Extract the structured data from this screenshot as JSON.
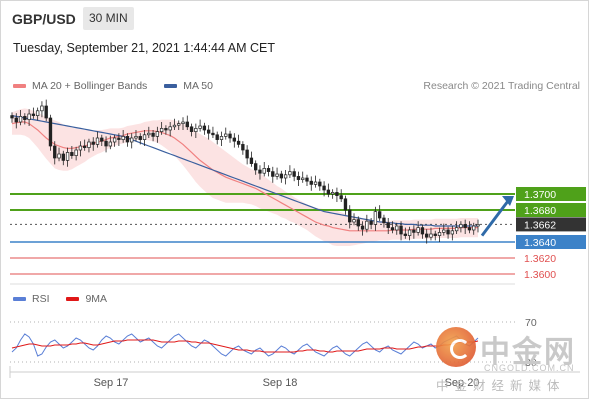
{
  "header": {
    "pair": "GBP/USD",
    "timeframe": "30 MIN",
    "timestamp": "Tuesday, September 21, 2021 1:44:44 AM CET"
  },
  "legend": {
    "items": [
      {
        "label": "MA 20 + Bollinger Bands",
        "color": "#f08080"
      },
      {
        "label": "MA 50",
        "color": "#3a5f9e"
      }
    ],
    "credit": "Research © 2021 Trading Central"
  },
  "rsi_legend": {
    "items": [
      {
        "label": "RSI",
        "color": "#5a7fd6"
      },
      {
        "label": "9MA",
        "color": "#e01818"
      }
    ]
  },
  "watermark": {
    "name": "中金网",
    "url": "CNGOLD.COM.CN",
    "slogan": "中金财经新媒体"
  },
  "chart_data": {
    "type": "candlestick",
    "x_labels": [
      "Sep 17",
      "Sep 18",
      "Sep 20"
    ],
    "ylim": [
      1.359,
      1.382
    ],
    "price_levels": [
      {
        "value": 1.37,
        "label": "1.3700",
        "style": "resistance",
        "color": "#4fa11a"
      },
      {
        "value": 1.368,
        "label": "1.3680",
        "style": "resistance",
        "color": "#4fa11a"
      },
      {
        "value": 1.3662,
        "label": "1.3662",
        "style": "last",
        "color": "#333333"
      },
      {
        "value": 1.364,
        "label": "1.3640",
        "style": "pivot",
        "color": "#3c82c8"
      },
      {
        "value": 1.362,
        "label": "1.3620",
        "style": "support",
        "color": "#e05050"
      },
      {
        "value": 1.36,
        "label": "1.3600",
        "style": "support",
        "color": "#e05050"
      }
    ],
    "closes": [
      1.3795,
      1.379,
      1.3797,
      1.3793,
      1.38,
      1.3798,
      1.3804,
      1.381,
      1.3795,
      1.376,
      1.3745,
      1.375,
      1.3742,
      1.3752,
      1.3748,
      1.3755,
      1.376,
      1.3758,
      1.3765,
      1.3762,
      1.377,
      1.3766,
      1.376,
      1.3765,
      1.377,
      1.3768,
      1.3772,
      1.3765,
      1.377,
      1.3772,
      1.3768,
      1.3774,
      1.3776,
      1.3772,
      1.3778,
      1.3782,
      1.378,
      1.3784,
      1.3786,
      1.3788,
      1.379,
      1.3784,
      1.3778,
      1.3782,
      1.3785,
      1.378,
      1.3776,
      1.3774,
      1.3768,
      1.3772,
      1.3775,
      1.377,
      1.3766,
      1.3762,
      1.3755,
      1.3745,
      1.3738,
      1.373,
      1.3726,
      1.3732,
      1.3728,
      1.3722,
      1.3725,
      1.372,
      1.3724,
      1.3728,
      1.3722,
      1.3718,
      1.372,
      1.3716,
      1.3712,
      1.3715,
      1.371,
      1.3705,
      1.37,
      1.3702,
      1.3698,
      1.3694,
      1.368,
      1.3665,
      1.3668,
      1.366,
      1.3656,
      1.3666,
      1.3662,
      1.3678,
      1.367,
      1.3664,
      1.3658,
      1.3655,
      1.366,
      1.365,
      1.3648,
      1.3655,
      1.3652,
      1.3658,
      1.365,
      1.3646,
      1.365,
      1.3648,
      1.3652,
      1.3655,
      1.365,
      1.3654,
      1.3658,
      1.3662,
      1.3658,
      1.3655,
      1.366,
      1.3662
    ],
    "ma20": [
      1.3788,
      1.3789,
      1.379,
      1.379,
      1.3788,
      1.3784,
      1.378,
      1.3775,
      1.377,
      1.3766,
      1.3762,
      1.376,
      1.3758,
      1.3757,
      1.3757,
      1.3758,
      1.3759,
      1.376,
      1.3762,
      1.3763,
      1.3765,
      1.3766,
      1.3768,
      1.377,
      1.3771,
      1.3772,
      1.3773,
      1.3775,
      1.3776,
      1.3777,
      1.3778,
      1.3779,
      1.3779,
      1.3779,
      1.3778,
      1.3777,
      1.3775,
      1.3773,
      1.377,
      1.3766,
      1.3762,
      1.3757,
      1.3752,
      1.3747,
      1.3742,
      1.3738,
      1.3734,
      1.373,
      1.3727,
      1.3724,
      1.3721,
      1.3719,
      1.3717,
      1.3715,
      1.3713,
      1.3711,
      1.3709,
      1.3707,
      1.3704,
      1.3701,
      1.3698,
      1.3695,
      1.3692,
      1.3689,
      1.3686,
      1.3683,
      1.368,
      1.3677,
      1.3674,
      1.3671,
      1.3668,
      1.3665,
      1.3663,
      1.3661,
      1.366,
      1.3658,
      1.3657,
      1.3656,
      1.3655,
      1.3654,
      1.3654,
      1.3654,
      1.3654,
      1.3654,
      1.3654,
      1.3654,
      1.3654,
      1.3654,
      1.3654,
      1.3655,
      1.3655,
      1.3655,
      1.3655,
      1.3655,
      1.3656,
      1.3656,
      1.3656,
      1.3656,
      1.3656,
      1.3657,
      1.3657,
      1.3657,
      1.3657,
      1.3657,
      1.3657,
      1.3658,
      1.3658,
      1.3658,
      1.3658,
      1.3658
    ],
    "ma50": [
      1.3798,
      1.3797,
      1.3796,
      1.3795,
      1.3794,
      1.3793,
      1.3792,
      1.3791,
      1.379,
      1.3789,
      1.3788,
      1.3787,
      1.3786,
      1.3785,
      1.3784,
      1.3783,
      1.3782,
      1.3781,
      1.378,
      1.3779,
      1.3778,
      1.3777,
      1.3776,
      1.3775,
      1.3774,
      1.3773,
      1.3772,
      1.377,
      1.3768,
      1.3766,
      1.3764,
      1.3762,
      1.376,
      1.3758,
      1.3756,
      1.3754,
      1.3752,
      1.375,
      1.3748,
      1.3746,
      1.3744,
      1.3742,
      1.374,
      1.3738,
      1.3736,
      1.3734,
      1.3732,
      1.373,
      1.3728,
      1.3726,
      1.3724,
      1.3722,
      1.372,
      1.3718,
      1.3716,
      1.3714,
      1.3712,
      1.371,
      1.3708,
      1.3706,
      1.3704,
      1.3702,
      1.37,
      1.3698,
      1.3696,
      1.3694,
      1.3692,
      1.369,
      1.3688,
      1.3686,
      1.3684,
      1.3682,
      1.368,
      1.3678,
      1.3677,
      1.3676,
      1.3675,
      1.3674,
      1.3673,
      1.3672,
      1.3671,
      1.367,
      1.3669,
      1.3668,
      1.3667,
      1.3666,
      1.3665,
      1.3665,
      1.3664,
      1.3664,
      1.3663,
      1.3663,
      1.3662,
      1.3662,
      1.3662,
      1.3661,
      1.3661,
      1.3661,
      1.3661,
      1.366,
      1.366,
      1.366,
      1.366,
      1.366,
      1.366,
      1.366,
      1.366,
      1.366,
      1.366,
      1.366
    ],
    "band_width": [
      0.0014,
      0.0015,
      0.0016,
      0.0017,
      0.0018,
      0.002,
      0.0022,
      0.0024,
      0.0026,
      0.0028,
      0.003,
      0.003,
      0.0029,
      0.0028,
      0.0026,
      0.0024,
      0.0022,
      0.002,
      0.0018,
      0.0016,
      0.0015,
      0.0014,
      0.0013,
      0.0012,
      0.0011,
      0.001,
      0.001,
      0.001,
      0.001,
      0.001,
      0.001,
      0.0011,
      0.0012,
      0.0013,
      0.0014,
      0.0016,
      0.0018,
      0.002,
      0.0022,
      0.0024,
      0.0026,
      0.0028,
      0.003,
      0.0032,
      0.0033,
      0.0034,
      0.0035,
      0.0035,
      0.0034,
      0.0033,
      0.0032,
      0.003,
      0.0028,
      0.0026,
      0.0024,
      0.0023,
      0.0022,
      0.0022,
      0.0022,
      0.0021,
      0.002,
      0.0019,
      0.0018,
      0.0018,
      0.0017,
      0.0017,
      0.0016,
      0.0016,
      0.0016,
      0.0016,
      0.0017,
      0.0018,
      0.0019,
      0.002,
      0.0021,
      0.0022,
      0.0022,
      0.0021,
      0.002,
      0.0019,
      0.0018,
      0.0017,
      0.0016,
      0.0015,
      0.0014,
      0.0013,
      0.0012,
      0.0012,
      0.0012,
      0.0012,
      0.0012,
      0.0012,
      0.0012,
      0.0012,
      0.0012,
      0.0012,
      0.0012,
      0.0012,
      0.0012,
      0.0012,
      0.0012,
      0.0012,
      0.0012,
      0.0012,
      0.0012,
      0.0012,
      0.0012,
      0.0012,
      0.0012,
      0.0012
    ],
    "arrow": {
      "from": 1.3648,
      "to": 1.3695,
      "direction": "up"
    },
    "rsi": {
      "levels": [
        70,
        30
      ],
      "ylim": [
        20,
        80
      ],
      "values": [
        40,
        44,
        52,
        58,
        55,
        48,
        36,
        38,
        45,
        50,
        52,
        48,
        44,
        46,
        50,
        54,
        52,
        48,
        44,
        42,
        46,
        52,
        56,
        54,
        50,
        48,
        52,
        56,
        58,
        54,
        50,
        52,
        54,
        50,
        46,
        44,
        48,
        52,
        56,
        58,
        54,
        50,
        46,
        44,
        48,
        52,
        50,
        46,
        42,
        38,
        36,
        40,
        44,
        46,
        42,
        40,
        38,
        42,
        44,
        40,
        36,
        38,
        42,
        46,
        44,
        40,
        38,
        42,
        46,
        48,
        44,
        40,
        38,
        36,
        40,
        44,
        46,
        42,
        38,
        36,
        40,
        44,
        48,
        50,
        46,
        42,
        40,
        44,
        46,
        42,
        40,
        38,
        42,
        46,
        50,
        48,
        44,
        46,
        48,
        44,
        46,
        50,
        52,
        54,
        56,
        52,
        48,
        46,
        50,
        54
      ],
      "ma9": [
        44,
        45,
        46,
        47,
        48,
        48,
        47,
        46,
        46,
        46,
        47,
        47,
        47,
        47,
        48,
        48,
        49,
        49,
        48,
        47,
        47,
        48,
        49,
        50,
        51,
        51,
        51,
        52,
        52,
        52,
        52,
        52,
        52,
        52,
        51,
        50,
        50,
        50,
        50,
        51,
        51,
        51,
        50,
        50,
        49,
        49,
        49,
        48,
        47,
        46,
        45,
        44,
        43,
        42,
        42,
        42,
        41,
        41,
        41,
        40,
        40,
        40,
        40,
        40,
        40,
        40,
        40,
        41,
        41,
        42,
        42,
        42,
        41,
        41,
        40,
        40,
        41,
        41,
        41,
        41,
        41,
        41,
        42,
        43,
        43,
        43,
        43,
        44,
        44,
        44,
        43,
        43,
        43,
        43,
        44,
        45,
        45,
        46,
        46,
        46,
        46,
        47,
        47,
        48,
        49,
        50,
        50,
        50,
        50,
        51
      ]
    }
  }
}
